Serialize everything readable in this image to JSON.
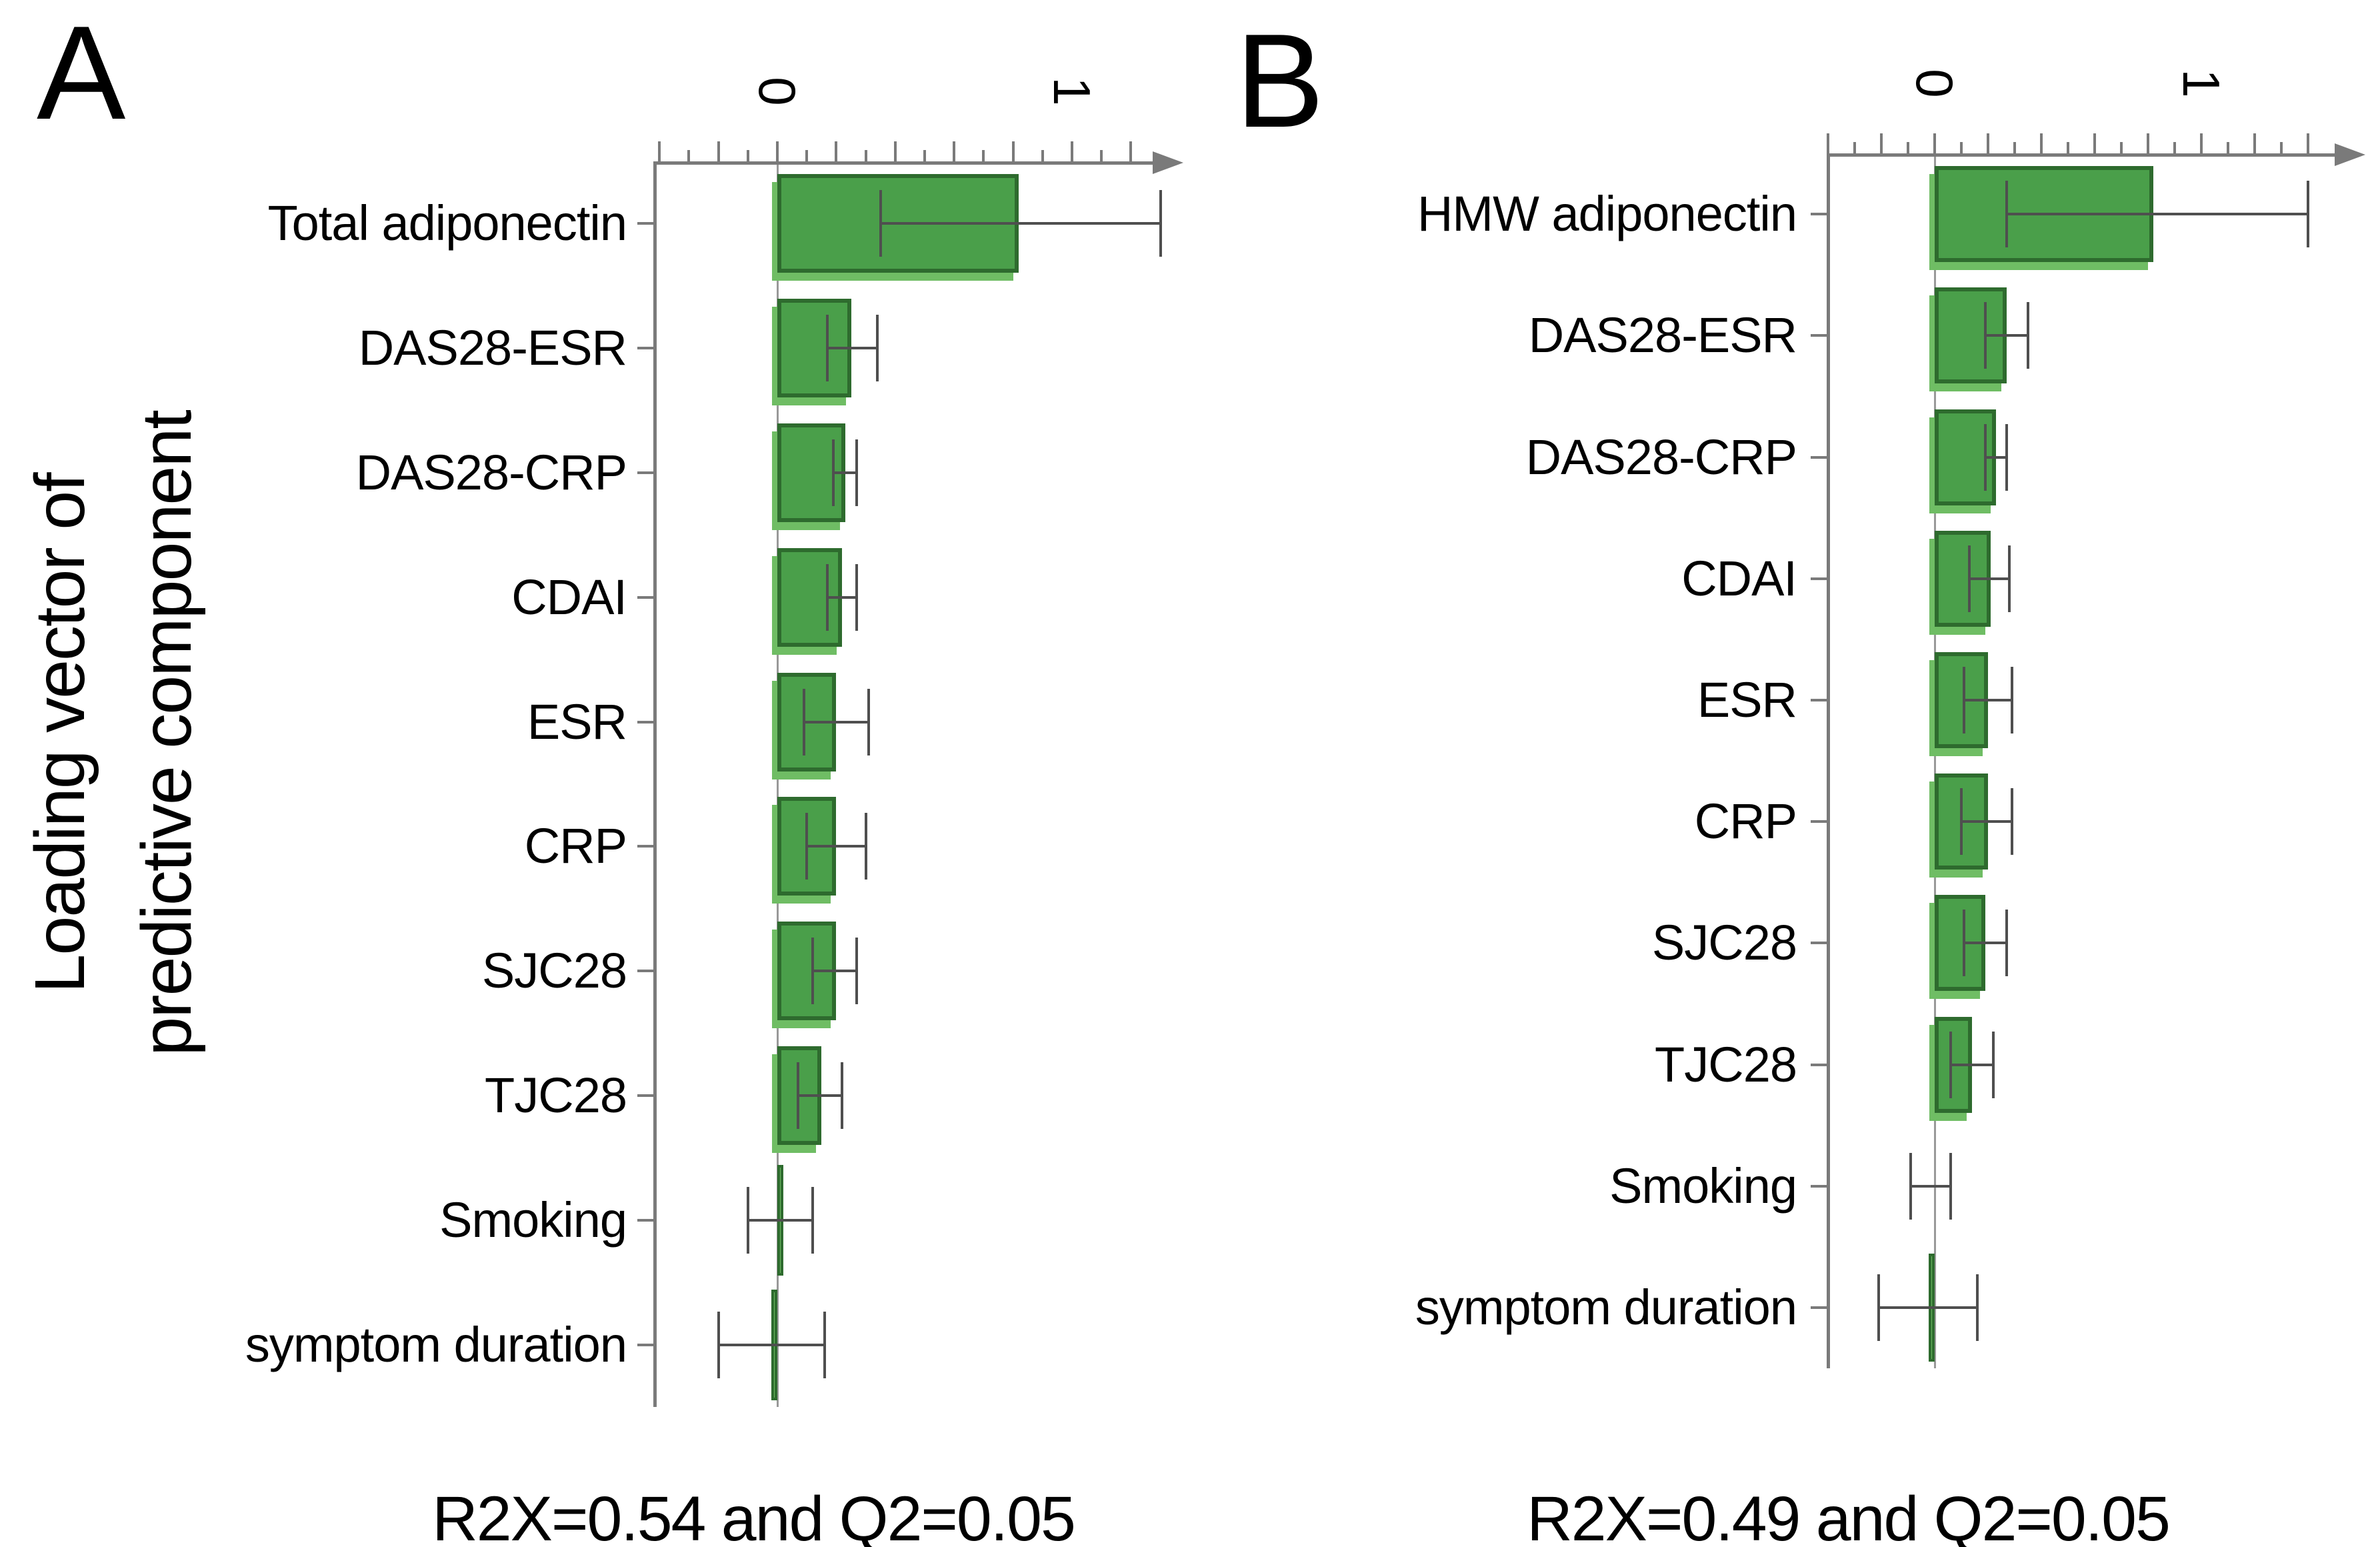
{
  "figure": {
    "axis_title": {
      "line1": "Loading vector of",
      "line2": "predictive component"
    },
    "panels": [
      {
        "letter": "A",
        "caption": "R2X=0.54 and Q2=0.05"
      },
      {
        "letter": "B",
        "caption": "R2X=0.49 and Q2=0.05"
      }
    ],
    "colors": {
      "bar_fill": "#4a9f4a",
      "bar_border": "#2e6b2e",
      "bar_echo": "#6fbd64",
      "error_bar": "#4f4f4f",
      "axis": "#7a7a7a",
      "zero_line": "#999999",
      "text": "#000000"
    }
  },
  "chart_data": [
    {
      "type": "bar",
      "orientation": "horizontal",
      "panel": "A",
      "title": "",
      "ylabel": "Loading vector of predictive component",
      "xlabel": "",
      "caption": "R2X=0.54 and Q2=0.05",
      "grid": false,
      "legend": null,
      "xlim": [
        -0.45,
        1.35
      ],
      "xtick_labels": [
        "0",
        "1"
      ],
      "xtick_values": [
        0,
        1
      ],
      "minor_tick_step": 0.1,
      "major_tick_step": 0.2,
      "categories": [
        "Total adiponectin",
        "DAS28-ESR",
        "DAS28-CRP",
        "CDAI",
        "ESR",
        "CRP",
        "SJC28",
        "TJC28",
        "Smoking",
        "symptom duration"
      ],
      "values": [
        0.82,
        0.25,
        0.23,
        0.22,
        0.2,
        0.2,
        0.2,
        0.15,
        0.01,
        -0.02
      ],
      "error_low": [
        0.35,
        0.17,
        0.19,
        0.17,
        0.09,
        0.1,
        0.12,
        0.07,
        -0.1,
        -0.2
      ],
      "error_high": [
        1.3,
        0.34,
        0.27,
        0.27,
        0.31,
        0.3,
        0.27,
        0.22,
        0.12,
        0.16
      ]
    },
    {
      "type": "bar",
      "orientation": "horizontal",
      "panel": "B",
      "title": "",
      "ylabel": "",
      "xlabel": "",
      "caption": "R2X=0.49 and Q2=0.05",
      "grid": false,
      "legend": null,
      "xlim": [
        -0.45,
        1.55
      ],
      "xtick_labels": [
        "0",
        "1"
      ],
      "xtick_values": [
        0,
        1
      ],
      "minor_tick_step": 0.1,
      "major_tick_step": 0.2,
      "categories": [
        "HMW adiponectin",
        "DAS28-ESR",
        "DAS28-CRP",
        "CDAI",
        "ESR",
        "CRP",
        "SJC28",
        "TJC28",
        "Smoking",
        "symptom duration"
      ],
      "values": [
        0.82,
        0.27,
        0.23,
        0.21,
        0.2,
        0.2,
        0.19,
        0.14,
        0.0,
        -0.02
      ],
      "error_low": [
        0.27,
        0.19,
        0.19,
        0.13,
        0.11,
        0.1,
        0.11,
        0.06,
        -0.09,
        -0.21
      ],
      "error_high": [
        1.4,
        0.35,
        0.27,
        0.28,
        0.29,
        0.29,
        0.27,
        0.22,
        0.06,
        0.16
      ]
    }
  ]
}
